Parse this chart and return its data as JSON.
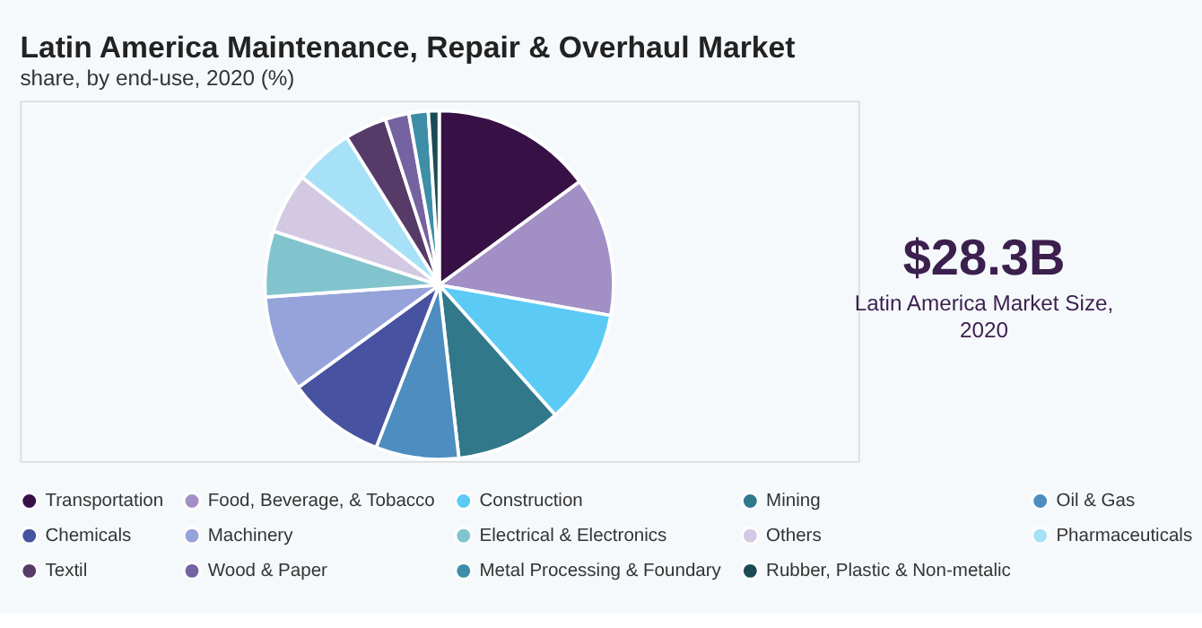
{
  "chart_data": {
    "type": "pie",
    "title": "Latin America Maintenance, Repair & Overhaul Market",
    "subtitle": "share, by end-use, 2020 (%)",
    "categories": [
      "Transportation",
      "Food, Beverage, & Tobacco",
      "Construction",
      "Mining",
      "Oil & Gas",
      "Chemicals",
      "Machinery",
      "Electrical & Electronics",
      "Others",
      "Pharmaceuticals",
      "Textil",
      "Wood & Paper",
      "Metal Processing & Foundary",
      "Rubber, Plastic & Non-metalic"
    ],
    "values": [
      14.9,
      12.9,
      10.6,
      9.8,
      7.7,
      9.1,
      8.9,
      6.1,
      5.6,
      5.5,
      3.9,
      2.2,
      1.8,
      1.0
    ],
    "colors": [
      "#371146",
      "#a28fc5",
      "#5bcbf5",
      "#31788a",
      "#4d8dbf",
      "#4752a0",
      "#95a3da",
      "#82c4cd",
      "#d3c9e3",
      "#a6e1f7",
      "#563b69",
      "#7562a1",
      "#3d8ea6",
      "#1d4b55"
    ],
    "legend": "bottom",
    "annotations": [
      "$28.3B",
      "Latin America Market Size, 2020"
    ]
  }
}
